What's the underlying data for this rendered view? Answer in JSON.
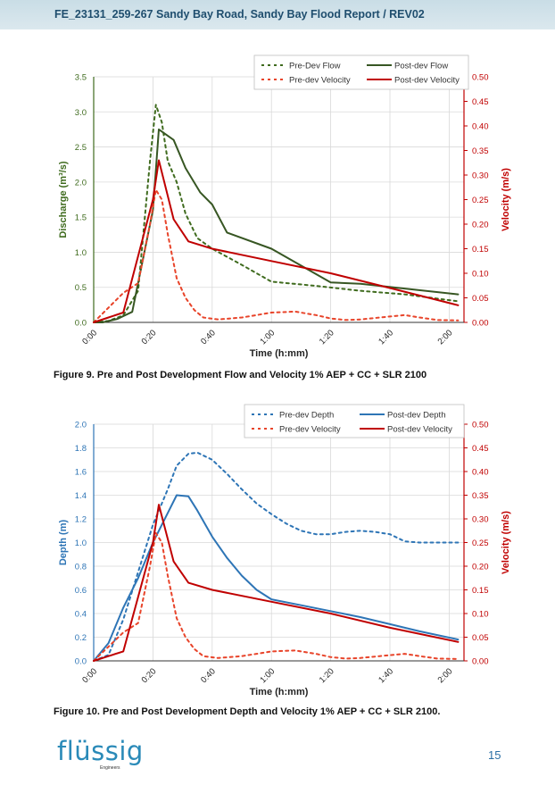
{
  "header": {
    "title": "FE_23131_259-267 Sandy Bay Road, Sandy Bay Flood Report / REV02"
  },
  "figures": [
    {
      "caption": "Figure 9. Pre and Post Development Flow and Velocity 1% AEP + CC + SLR 2100"
    },
    {
      "caption": "Figure 10. Pre and Post Development Depth and Velocity 1% AEP + CC + SLR 2100."
    }
  ],
  "footer": {
    "logo": "flüssig",
    "logo_sub": "Engineers",
    "page": "15"
  },
  "chart_data": [
    {
      "type": "line",
      "xlabel": "Time (h:mm)",
      "ylabel": "Discharge (m³/s)",
      "y2label": "Velocity (m/s)",
      "xlim": [
        0,
        125
      ],
      "ylim": [
        0,
        3.5
      ],
      "y2lim": [
        0,
        0.5
      ],
      "xticks": [
        0,
        20,
        40,
        60,
        80,
        100,
        120
      ],
      "xtick_labels": [
        "0:00",
        "0:20",
        "0:40",
        "1:00",
        "1:20",
        "1:40",
        "2:00"
      ],
      "yticks": [
        "0.0",
        "0.5",
        "1.0",
        "1.5",
        "2.0",
        "2.5",
        "3.0",
        "3.5"
      ],
      "y2ticks": [
        "0.00",
        "0.05",
        "0.10",
        "0.15",
        "0.20",
        "0.25",
        "0.30",
        "0.35",
        "0.40",
        "0.45",
        "0.50"
      ],
      "grid": true,
      "legend": "top-right",
      "series": [
        {
          "name": "Pre-Dev Flow",
          "axis": "y1",
          "color": "#3f6b1e",
          "dashed": true,
          "x": [
            0,
            5,
            10,
            15,
            19,
            21,
            23,
            25,
            28,
            31,
            35,
            40,
            50,
            60,
            75,
            90,
            105,
            123
          ],
          "y": [
            0,
            0.02,
            0.1,
            0.45,
            2.3,
            3.1,
            2.85,
            2.3,
            2.0,
            1.55,
            1.2,
            1.05,
            0.82,
            0.58,
            0.52,
            0.45,
            0.4,
            0.3
          ]
        },
        {
          "name": "Post-dev Flow",
          "axis": "y1",
          "color": "#375623",
          "dashed": false,
          "x": [
            0,
            3,
            8,
            13,
            20,
            22,
            27,
            31,
            36,
            40,
            45,
            60,
            80,
            90,
            123
          ],
          "y": [
            0,
            0.0,
            0.05,
            0.15,
            1.6,
            2.75,
            2.6,
            2.2,
            1.85,
            1.68,
            1.28,
            1.05,
            0.57,
            0.55,
            0.4
          ]
        },
        {
          "name": "Pre-dev Velocity",
          "axis": "y2",
          "color": "#e8442a",
          "dashed": true,
          "x": [
            0,
            5,
            10,
            15,
            19,
            21,
            23,
            25,
            28,
            31,
            34,
            37,
            42,
            50,
            55,
            60,
            68,
            75,
            80,
            85,
            90,
            100,
            105,
            110,
            116,
            123
          ],
          "y": [
            0,
            0.03,
            0.06,
            0.08,
            0.2,
            0.27,
            0.25,
            0.18,
            0.09,
            0.05,
            0.025,
            0.01,
            0.006,
            0.01,
            0.015,
            0.02,
            0.022,
            0.015,
            0.008,
            0.005,
            0.006,
            0.012,
            0.015,
            0.01,
            0.005,
            0.004
          ]
        },
        {
          "name": "Post-dev Velocity",
          "axis": "y2",
          "color": "#c00000",
          "dashed": false,
          "x": [
            0,
            5,
            10,
            20,
            22,
            27,
            32,
            40,
            60,
            80,
            100,
            123
          ],
          "y": [
            0,
            0.01,
            0.02,
            0.25,
            0.33,
            0.21,
            0.165,
            0.15,
            0.125,
            0.1,
            0.07,
            0.035
          ]
        }
      ]
    },
    {
      "type": "line",
      "xlabel": "Time (h:mm)",
      "ylabel": "Depth (m)",
      "y2label": "Velocity (m/s)",
      "xlim": [
        0,
        125
      ],
      "ylim": [
        0,
        2.0
      ],
      "y2lim": [
        0,
        0.5
      ],
      "xticks": [
        0,
        20,
        40,
        60,
        80,
        100,
        120
      ],
      "xtick_labels": [
        "0:00",
        "0:20",
        "0:40",
        "1:00",
        "1:20",
        "1:40",
        "2:00"
      ],
      "yticks": [
        "0.0",
        "0.2",
        "0.4",
        "0.6",
        "0.8",
        "1.0",
        "1.2",
        "1.4",
        "1.6",
        "1.8",
        "2.0"
      ],
      "y2ticks": [
        "0.00",
        "0.05",
        "0.10",
        "0.15",
        "0.20",
        "0.25",
        "0.30",
        "0.35",
        "0.40",
        "0.45",
        "0.50"
      ],
      "grid": true,
      "legend": "top-right",
      "series": [
        {
          "name": "Pre-dev Depth",
          "axis": "y1",
          "color": "#2e75b6",
          "dashed": true,
          "x": [
            0,
            5,
            10,
            15,
            20,
            25,
            28,
            32,
            35,
            40,
            45,
            50,
            55,
            60,
            65,
            70,
            75,
            80,
            85,
            90,
            95,
            100,
            105,
            110,
            115,
            120,
            123
          ],
          "y": [
            0,
            0.05,
            0.35,
            0.75,
            1.15,
            1.45,
            1.65,
            1.75,
            1.76,
            1.7,
            1.58,
            1.45,
            1.33,
            1.24,
            1.16,
            1.1,
            1.07,
            1.07,
            1.09,
            1.1,
            1.09,
            1.07,
            1.01,
            1.0,
            1.0,
            1.0,
            1.0
          ]
        },
        {
          "name": "Post-dev Depth",
          "axis": "y1",
          "color": "#2e75b6",
          "dashed": false,
          "x": [
            0,
            5,
            10,
            15,
            20,
            25,
            28,
            32,
            35,
            40,
            45,
            50,
            55,
            60,
            70,
            80,
            90,
            100,
            110,
            123
          ],
          "y": [
            0,
            0.15,
            0.45,
            0.7,
            1.0,
            1.25,
            1.4,
            1.39,
            1.27,
            1.05,
            0.87,
            0.72,
            0.6,
            0.52,
            0.47,
            0.42,
            0.37,
            0.31,
            0.25,
            0.18
          ]
        },
        {
          "name": "Pre-dev Velocity",
          "axis": "y2",
          "color": "#e8442a",
          "dashed": true,
          "x": [
            0,
            5,
            10,
            15,
            19,
            21,
            23,
            25,
            28,
            31,
            34,
            37,
            42,
            50,
            55,
            60,
            68,
            75,
            80,
            85,
            90,
            100,
            105,
            110,
            116,
            123
          ],
          "y": [
            0,
            0.03,
            0.06,
            0.08,
            0.2,
            0.27,
            0.25,
            0.18,
            0.09,
            0.05,
            0.025,
            0.01,
            0.006,
            0.01,
            0.015,
            0.02,
            0.022,
            0.015,
            0.008,
            0.005,
            0.006,
            0.012,
            0.015,
            0.01,
            0.005,
            0.004
          ]
        },
        {
          "name": "Post-dev Velocity",
          "axis": "y2",
          "color": "#c00000",
          "dashed": false,
          "x": [
            0,
            5,
            10,
            20,
            22,
            27,
            32,
            40,
            60,
            80,
            100,
            123
          ],
          "y": [
            0,
            0.01,
            0.02,
            0.25,
            0.33,
            0.21,
            0.165,
            0.15,
            0.125,
            0.1,
            0.07,
            0.04
          ]
        }
      ]
    }
  ]
}
